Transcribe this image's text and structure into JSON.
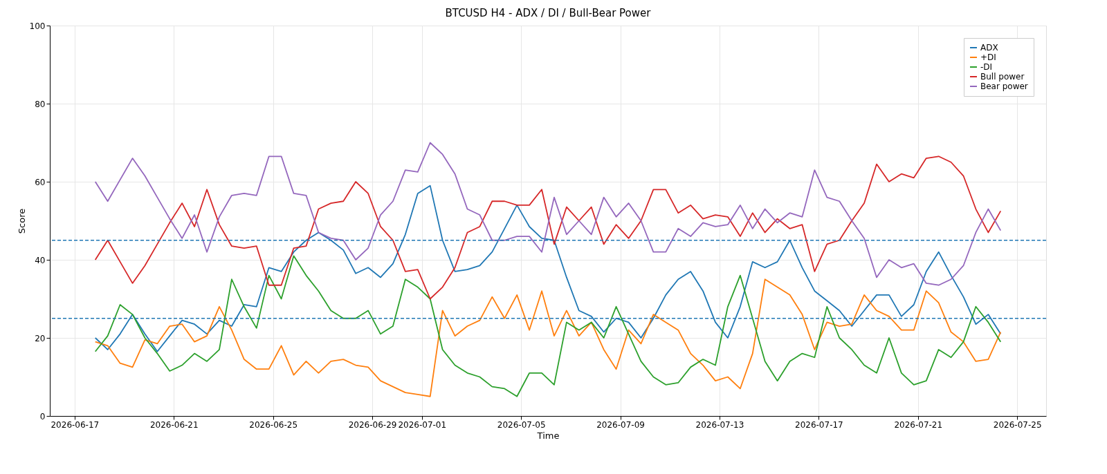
{
  "chart_data": {
    "type": "line",
    "title": "BTCUSD H4 - ADX / DI / Bull-Bear Power",
    "xlabel": "Time",
    "ylabel": "Score",
    "x": [
      "2026-06-17T20:00",
      "2026-06-18T08:00",
      "2026-06-18T20:00",
      "2026-06-19T08:00",
      "2026-06-19T20:00",
      "2026-06-20T08:00",
      "2026-06-20T20:00",
      "2026-06-21T08:00",
      "2026-06-21T20:00",
      "2026-06-22T08:00",
      "2026-06-22T20:00",
      "2026-06-23T08:00",
      "2026-06-23T20:00",
      "2026-06-24T08:00",
      "2026-06-24T20:00",
      "2026-06-25T08:00",
      "2026-06-25T20:00",
      "2026-06-26T08:00",
      "2026-06-26T20:00",
      "2026-06-27T08:00",
      "2026-06-27T20:00",
      "2026-06-28T08:00",
      "2026-06-28T20:00",
      "2026-06-29T08:00",
      "2026-06-29T20:00",
      "2026-06-30T08:00",
      "2026-06-30T20:00",
      "2026-07-01T08:00",
      "2026-07-01T20:00",
      "2026-07-02T08:00",
      "2026-07-02T20:00",
      "2026-07-03T08:00",
      "2026-07-03T20:00",
      "2026-07-04T08:00",
      "2026-07-04T20:00",
      "2026-07-05T08:00",
      "2026-07-05T20:00",
      "2026-07-06T08:00",
      "2026-07-06T20:00",
      "2026-07-07T08:00",
      "2026-07-07T20:00",
      "2026-07-08T08:00",
      "2026-07-08T20:00",
      "2026-07-09T08:00",
      "2026-07-09T20:00",
      "2026-07-10T08:00",
      "2026-07-10T20:00",
      "2026-07-11T08:00",
      "2026-07-11T20:00",
      "2026-07-12T08:00",
      "2026-07-12T20:00",
      "2026-07-13T08:00",
      "2026-07-13T20:00",
      "2026-07-14T08:00",
      "2026-07-14T20:00",
      "2026-07-15T08:00",
      "2026-07-15T20:00",
      "2026-07-16T08:00",
      "2026-07-16T20:00",
      "2026-07-17T08:00",
      "2026-07-17T20:00",
      "2026-07-18T08:00",
      "2026-07-18T20:00",
      "2026-07-19T08:00",
      "2026-07-19T20:00",
      "2026-07-20T08:00",
      "2026-07-20T20:00",
      "2026-07-21T08:00",
      "2026-07-21T20:00",
      "2026-07-22T08:00",
      "2026-07-22T20:00",
      "2026-07-23T08:00",
      "2026-07-23T20:00",
      "2026-07-24T08:00"
    ],
    "series": [
      {
        "name": "ADX",
        "color": "#1f77b4",
        "values": [
          20,
          17,
          21,
          26,
          21,
          16.5,
          20.5,
          24.5,
          23.5,
          21,
          24.5,
          23,
          28.5,
          28,
          38,
          37,
          42,
          45,
          47,
          45,
          42.5,
          36.5,
          38,
          35.5,
          39,
          46.5,
          57,
          59,
          45,
          37,
          37.5,
          38.5,
          42,
          48,
          54,
          48.5,
          45.5,
          45,
          35.5,
          27,
          25.5,
          21.5,
          25,
          24,
          20,
          25,
          31,
          35,
          37,
          32,
          24,
          20,
          28,
          39.5,
          38,
          39.5,
          45,
          38,
          32,
          29.5,
          27,
          23,
          27,
          31,
          31,
          25.5,
          28.5,
          37,
          42,
          36,
          30.5,
          23.5,
          26,
          21
        ]
      },
      {
        "name": "+DI",
        "color": "#ff7f0e",
        "values": [
          19,
          18,
          13.5,
          12.5,
          19.5,
          18.5,
          23,
          23.5,
          19,
          20.5,
          28,
          22,
          14.5,
          12,
          12,
          18,
          10.5,
          14,
          11,
          14,
          14.5,
          13,
          12.5,
          9,
          7.5,
          6,
          5.5,
          5,
          27,
          20.5,
          23,
          24.5,
          30.5,
          25,
          31,
          22,
          32,
          20.5,
          27,
          20.5,
          24,
          17,
          12,
          22,
          18.5,
          26,
          24,
          22,
          16,
          13,
          9,
          10,
          7,
          16,
          35,
          33,
          31,
          26,
          17,
          24,
          23,
          23.5,
          31,
          27,
          25.5,
          22,
          22,
          32,
          29,
          21.5,
          19,
          14,
          14.5,
          21.5
        ]
      },
      {
        "name": "-DI",
        "color": "#2ca02c",
        "values": [
          16.5,
          20.5,
          28.5,
          26,
          20,
          16,
          11.5,
          13,
          16,
          14,
          17,
          35,
          28,
          22.5,
          36,
          30,
          41,
          36,
          32,
          27,
          25,
          25,
          27,
          21,
          23,
          35,
          33,
          30,
          17,
          13,
          11,
          10,
          7.5,
          7,
          5,
          11,
          11,
          8,
          24,
          22,
          24,
          20,
          28,
          21,
          14,
          10,
          8,
          8.5,
          12.5,
          14.5,
          13,
          28,
          36,
          25,
          14,
          9,
          14,
          16,
          15,
          28,
          20,
          17,
          13,
          11,
          20,
          11,
          8,
          9,
          17,
          15,
          19,
          28,
          24,
          19
        ]
      },
      {
        "name": "Bull power",
        "color": "#d62728",
        "values": [
          40,
          45,
          39.5,
          34,
          38.5,
          44,
          49.5,
          54.5,
          48.5,
          58,
          49,
          43.5,
          43,
          43.5,
          33.5,
          33.5,
          43,
          43.5,
          53,
          54.5,
          55,
          60,
          57,
          48.5,
          45,
          37,
          37.5,
          30,
          33,
          38,
          47,
          48.5,
          55,
          55,
          54,
          54,
          58,
          44,
          53.5,
          50,
          53.5,
          44,
          49,
          45.5,
          50,
          58,
          58,
          52,
          54,
          50.5,
          51.5,
          51,
          46,
          52,
          47,
          50.5,
          48,
          49,
          37,
          44,
          45,
          50,
          54.5,
          64.5,
          60,
          62,
          61,
          66,
          66.5,
          65,
          61.5,
          53,
          47,
          52.5
        ]
      },
      {
        "name": "Bear power",
        "color": "#9467bd",
        "values": [
          60,
          55,
          60.5,
          66,
          61.5,
          56,
          50.5,
          45.5,
          51.5,
          42,
          51,
          56.5,
          57,
          56.5,
          66.5,
          66.5,
          57,
          56.5,
          47,
          45.5,
          45,
          40,
          43,
          51.5,
          55,
          63,
          62.5,
          70,
          67,
          62,
          53,
          51.5,
          45,
          45,
          46,
          46,
          42,
          56,
          46.5,
          50,
          46.5,
          56,
          51,
          54.5,
          50,
          42,
          42,
          48,
          46,
          49.5,
          48.5,
          49,
          54,
          48,
          53,
          49.5,
          52,
          51,
          63,
          56,
          55,
          50,
          45.5,
          35.5,
          40,
          38,
          39,
          34,
          33.5,
          35,
          38.5,
          47,
          53,
          47.5
        ]
      }
    ],
    "ref_lines": [
      {
        "axis": "y",
        "value": 45,
        "color": "#1f77b4",
        "line_style": "dashed"
      },
      {
        "axis": "y",
        "value": 25,
        "color": "#1f77b4",
        "line_style": "dashed"
      }
    ],
    "xlim": [
      "2026-06-16T00:00",
      "2026-07-26T04:00"
    ],
    "xticks": [
      "2026-06-17",
      "2026-06-21",
      "2026-06-25",
      "2026-06-29",
      "2026-07-01",
      "2026-07-05",
      "2026-07-09",
      "2026-07-13",
      "2026-07-17",
      "2026-07-21",
      "2026-07-25"
    ],
    "ylim": [
      0,
      100
    ],
    "yticks": [
      0,
      20,
      40,
      60,
      80,
      100
    ],
    "grid": true,
    "legend": "top right",
    "line_style": "solid",
    "marker": "none"
  }
}
